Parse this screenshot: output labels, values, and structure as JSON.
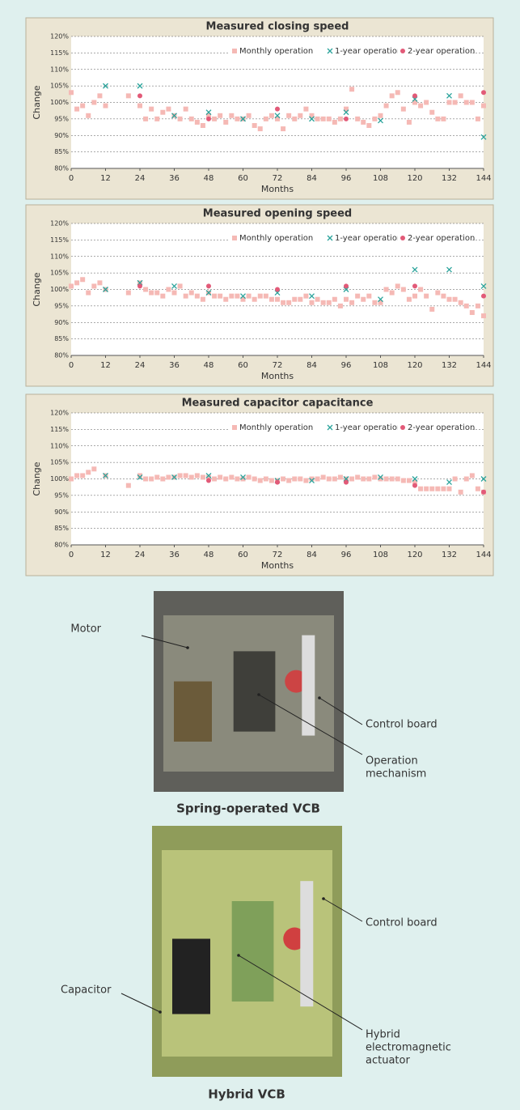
{
  "chart_data": [
    {
      "type": "scatter",
      "title": "Measured closing speed",
      "x_label": "Months",
      "y_label": "Change",
      "xlim": [
        0,
        144
      ],
      "ylim": [
        80,
        120
      ],
      "xticks": [
        0,
        12,
        24,
        36,
        48,
        60,
        72,
        84,
        96,
        108,
        120,
        132,
        144
      ],
      "yticks": [
        {
          "value": 80,
          "label": "80%"
        },
        {
          "value": 85,
          "label": "85%"
        },
        {
          "value": 90,
          "label": "90%"
        },
        {
          "value": 95,
          "label": "95%"
        },
        {
          "value": 100,
          "label": "100%"
        },
        {
          "value": 105,
          "label": "105%"
        },
        {
          "value": 110,
          "label": "110%"
        },
        {
          "value": 115,
          "label": "115%"
        },
        {
          "value": 120,
          "label": "120%"
        }
      ],
      "grid": true,
      "legend": "upper right",
      "series": [
        {
          "name": "Monthly operation",
          "color": "#f5b9b5",
          "marker": "square",
          "x": [
            0,
            2,
            4,
            6,
            8,
            10,
            12,
            14,
            16,
            18,
            20,
            22,
            24,
            26,
            28,
            30,
            32,
            34,
            36,
            38,
            40,
            42,
            44,
            46,
            48,
            50,
            52,
            54,
            56,
            58,
            60,
            62,
            64,
            66,
            68,
            70,
            72,
            74,
            76,
            78,
            80,
            82,
            84,
            86,
            88,
            90,
            92,
            94,
            96,
            98,
            100,
            102,
            104,
            106,
            108,
            110,
            112,
            114,
            116,
            118,
            120,
            122,
            124,
            126,
            128,
            130,
            132,
            134,
            136,
            138,
            140,
            142,
            144
          ],
          "values": [
            103,
            98,
            99,
            96,
            100,
            102,
            99,
            null,
            null,
            null,
            102,
            null,
            99,
            95,
            98,
            95,
            97,
            98,
            96,
            95,
            98,
            95,
            94,
            93,
            96,
            95,
            96,
            94,
            96,
            95,
            95,
            96,
            93,
            92,
            95,
            96,
            95,
            92,
            96,
            95,
            96,
            98,
            96,
            95,
            95,
            95,
            94,
            95,
            98,
            104,
            95,
            94,
            93,
            95,
            96,
            99,
            102,
            103,
            98,
            94,
            100,
            99,
            100,
            97,
            95,
            95,
            100,
            100,
            102,
            100,
            100,
            95,
            99
          ]
        },
        {
          "name": "1-year operation",
          "color": "#2aa39b",
          "marker": "x",
          "x": [
            12,
            24,
            36,
            48,
            60,
            72,
            84,
            96,
            108,
            120,
            132,
            144
          ],
          "values": [
            105,
            105,
            96,
            97,
            95,
            96,
            95,
            97,
            94.5,
            101,
            102,
            89.5
          ]
        },
        {
          "name": "2-year operation",
          "color": "#e25a78",
          "marker": "circle",
          "x": [
            24,
            48,
            72,
            96,
            120,
            144
          ],
          "values": [
            102,
            95,
            98,
            95,
            102,
            103
          ]
        }
      ]
    },
    {
      "type": "scatter",
      "title": "Measured opening speed",
      "x_label": "Months",
      "y_label": "Change",
      "xlim": [
        0,
        144
      ],
      "ylim": [
        80,
        120
      ],
      "xticks": [
        0,
        12,
        24,
        36,
        48,
        60,
        72,
        84,
        96,
        108,
        120,
        132,
        144
      ],
      "yticks": [
        {
          "value": 80,
          "label": "80%"
        },
        {
          "value": 85,
          "label": "85%"
        },
        {
          "value": 90,
          "label": "90%"
        },
        {
          "value": 95,
          "label": "95%"
        },
        {
          "value": 100,
          "label": "100%"
        },
        {
          "value": 105,
          "label": "105%"
        },
        {
          "value": 110,
          "label": "110%"
        },
        {
          "value": 115,
          "label": "115%"
        },
        {
          "value": 120,
          "label": "120%"
        }
      ],
      "grid": true,
      "legend": "upper right",
      "series": [
        {
          "name": "Monthly operation",
          "color": "#f5b9b5",
          "marker": "square",
          "x": [
            0,
            2,
            4,
            6,
            8,
            10,
            12,
            14,
            16,
            18,
            20,
            22,
            24,
            26,
            28,
            30,
            32,
            34,
            36,
            38,
            40,
            42,
            44,
            46,
            48,
            50,
            52,
            54,
            56,
            58,
            60,
            62,
            64,
            66,
            68,
            70,
            72,
            74,
            76,
            78,
            80,
            82,
            84,
            86,
            88,
            90,
            92,
            94,
            96,
            98,
            100,
            102,
            104,
            106,
            108,
            110,
            112,
            114,
            116,
            118,
            120,
            122,
            124,
            126,
            128,
            130,
            132,
            134,
            136,
            138,
            140,
            142,
            144
          ],
          "values": [
            101,
            102,
            103,
            99,
            101,
            102,
            100,
            null,
            null,
            null,
            99,
            null,
            102,
            100,
            99,
            99,
            98,
            100,
            99,
            101,
            98,
            99,
            98,
            97,
            99,
            98,
            98,
            97,
            98,
            98,
            97,
            98,
            97,
            98,
            98,
            97,
            97,
            96,
            96,
            97,
            97,
            98,
            96,
            97,
            96,
            96,
            97,
            95,
            97,
            96,
            98,
            97,
            98,
            96,
            96,
            100,
            99,
            101,
            100,
            97,
            98,
            100,
            98,
            94,
            99,
            98,
            97,
            97,
            96,
            95,
            93,
            95,
            92
          ]
        },
        {
          "name": "1-year operation",
          "color": "#2aa39b",
          "marker": "x",
          "x": [
            12,
            24,
            36,
            48,
            60,
            72,
            84,
            96,
            108,
            120,
            132,
            144
          ],
          "values": [
            100,
            102,
            101,
            99,
            98,
            99,
            98,
            100,
            97,
            106,
            106,
            101
          ]
        },
        {
          "name": "2-year operation",
          "color": "#e25a78",
          "marker": "circle",
          "x": [
            24,
            48,
            72,
            96,
            120,
            144
          ],
          "values": [
            101,
            101,
            100,
            101,
            101,
            98
          ]
        }
      ]
    },
    {
      "type": "scatter",
      "title": "Measured capacitor capacitance",
      "x_label": "Months",
      "y_label": "Change",
      "xlim": [
        0,
        144
      ],
      "ylim": [
        80,
        120
      ],
      "xticks": [
        0,
        12,
        24,
        36,
        48,
        60,
        72,
        84,
        96,
        108,
        120,
        132,
        144
      ],
      "yticks": [
        {
          "value": 80,
          "label": "80%"
        },
        {
          "value": 85,
          "label": "85%"
        },
        {
          "value": 90,
          "label": "90%"
        },
        {
          "value": 95,
          "label": "95%"
        },
        {
          "value": 100,
          "label": "100%"
        },
        {
          "value": 105,
          "label": "105%"
        },
        {
          "value": 110,
          "label": "110%"
        },
        {
          "value": 115,
          "label": "115%"
        },
        {
          "value": 120,
          "label": "120%"
        }
      ],
      "grid": true,
      "legend": "upper right",
      "series": [
        {
          "name": "Monthly operation",
          "color": "#f5b9b5",
          "marker": "square",
          "x": [
            0,
            2,
            4,
            6,
            8,
            10,
            12,
            14,
            16,
            18,
            20,
            22,
            24,
            26,
            28,
            30,
            32,
            34,
            36,
            38,
            40,
            42,
            44,
            46,
            48,
            50,
            52,
            54,
            56,
            58,
            60,
            62,
            64,
            66,
            68,
            70,
            72,
            74,
            76,
            78,
            80,
            82,
            84,
            86,
            88,
            90,
            92,
            94,
            96,
            98,
            100,
            102,
            104,
            106,
            108,
            110,
            112,
            114,
            116,
            118,
            120,
            122,
            124,
            126,
            128,
            130,
            132,
            134,
            136,
            138,
            140,
            142,
            144
          ],
          "values": [
            100,
            101,
            101,
            102,
            103,
            null,
            101,
            null,
            null,
            null,
            98,
            null,
            101,
            100,
            100,
            100.5,
            100,
            100.5,
            100.5,
            101,
            101,
            100.5,
            101,
            100.5,
            100.5,
            100,
            100.5,
            100,
            100.5,
            100,
            100,
            100.5,
            100,
            99.5,
            100,
            99.5,
            99.5,
            100,
            99.5,
            100,
            100,
            99.5,
            100,
            100,
            100.5,
            100,
            100,
            100.5,
            100,
            100,
            100.5,
            100,
            100,
            100.5,
            100,
            100,
            100,
            100,
            99.5,
            99.5,
            99,
            97,
            97,
            97,
            97,
            97,
            97,
            100,
            96,
            100,
            101,
            97,
            96
          ]
        },
        {
          "name": "1-year operation",
          "color": "#2aa39b",
          "marker": "x",
          "x": [
            12,
            24,
            36,
            48,
            60,
            72,
            84,
            96,
            108,
            120,
            132,
            144
          ],
          "values": [
            101,
            100.5,
            100.5,
            101,
            100.5,
            99.5,
            99.5,
            100,
            100.5,
            100,
            99,
            100
          ]
        },
        {
          "name": "2-year operation",
          "color": "#e25a78",
          "marker": "circle",
          "x": [
            48,
            72,
            96,
            120,
            144
          ],
          "values": [
            99.5,
            99,
            99,
            98,
            96
          ]
        }
      ]
    }
  ],
  "figures": [
    {
      "caption": "Spring-operated VCB",
      "labels": [
        [
          "Motor"
        ],
        [
          "Control board"
        ],
        [
          "Operation",
          "mechanism"
        ]
      ]
    },
    {
      "caption": "Hybrid VCB",
      "labels": [
        [
          "Control board"
        ],
        [
          "Capacitor"
        ],
        [
          "Hybrid",
          "electromagnetic",
          "actuator"
        ]
      ]
    }
  ]
}
